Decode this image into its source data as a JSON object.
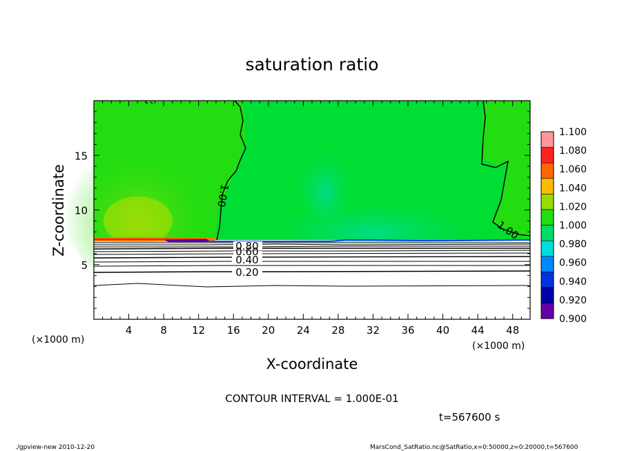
{
  "chart_data": {
    "type": "heatmap",
    "title": "saturation ratio",
    "xlabel": "X-coordinate",
    "ylabel": "Z-coordinate",
    "x_unit": "(×1000 m)",
    "y_unit": "(×1000 m)",
    "xlim": [
      0,
      50
    ],
    "ylim": [
      0,
      20
    ],
    "x_ticks": [
      4,
      8,
      12,
      16,
      20,
      24,
      28,
      32,
      36,
      40,
      44,
      48
    ],
    "y_ticks": [
      5,
      10,
      15
    ],
    "colorbar": {
      "levels": [
        "0.900",
        "0.920",
        "0.940",
        "0.960",
        "0.980",
        "1.000",
        "1.020",
        "1.040",
        "1.060",
        "1.080",
        "1.100"
      ],
      "colors": [
        "#6600aa",
        "#0000aa",
        "#0033dd",
        "#0088ff",
        "#00dddd",
        "#00dd66",
        "#22dd11",
        "#99dd00",
        "#ffbb00",
        "#ff6600",
        "#ff2222",
        "#ff9999"
      ]
    },
    "contour_labels": [
      "1.00",
      "1.00",
      "0.80",
      "0.60",
      "0.40",
      "0.20"
    ],
    "contour_interval_text": "CONTOUR INTERVAL = 1.000E-01",
    "time_text": "t=567600 s",
    "footer_left": "./gpview-new   2010-12-20",
    "footer_right": "MarsCond_SatRatio.nc@SatRatio,x=0:50000,z=0:20000,t=567600"
  }
}
